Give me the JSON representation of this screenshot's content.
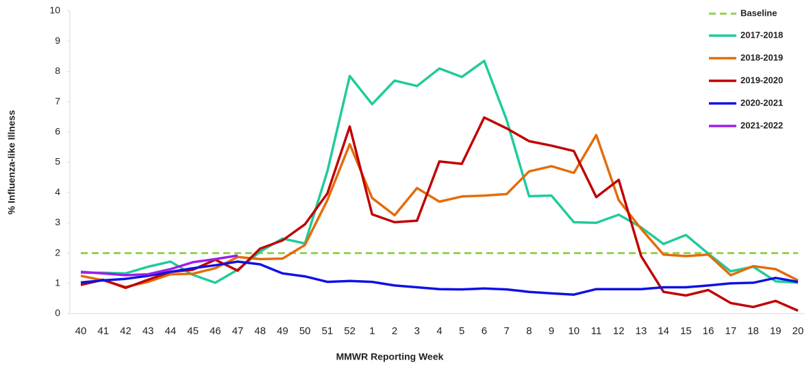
{
  "chart_data": {
    "type": "line",
    "y_label": "% Influenza-like Illness",
    "x_label": "MMWR Reporting Week",
    "categories": [
      "40",
      "41",
      "42",
      "43",
      "44",
      "45",
      "46",
      "47",
      "48",
      "49",
      "50",
      "51",
      "52",
      "1",
      "2",
      "3",
      "4",
      "5",
      "6",
      "7",
      "8",
      "9",
      "10",
      "11",
      "12",
      "13",
      "14",
      "15",
      "16",
      "17",
      "18",
      "19",
      "20"
    ],
    "ylim": [
      0,
      10
    ],
    "yticks": [
      0,
      1,
      2,
      3,
      4,
      5,
      6,
      7,
      8,
      9,
      10
    ],
    "baseline": {
      "name": "Baseline",
      "value": 2.0,
      "color": "#92d050"
    },
    "series": [
      {
        "name": "2017-2018",
        "color": "#1fcb9a",
        "values": [
          1.35,
          1.35,
          1.33,
          1.55,
          1.72,
          1.28,
          1.02,
          1.45,
          2.05,
          2.48,
          2.32,
          4.7,
          7.85,
          6.92,
          7.7,
          7.52,
          8.1,
          7.82,
          8.35,
          6.4,
          3.88,
          3.9,
          3.02,
          3.0,
          3.27,
          2.85,
          2.3,
          2.6,
          1.98,
          1.4,
          1.55,
          1.07,
          1.02
        ]
      },
      {
        "name": "2018-2019",
        "color": "#e46c0a",
        "values": [
          1.25,
          1.1,
          0.88,
          1.05,
          1.3,
          1.32,
          1.5,
          1.87,
          1.8,
          1.82,
          2.27,
          3.75,
          5.6,
          3.82,
          3.25,
          4.15,
          3.7,
          3.87,
          3.9,
          3.95,
          4.7,
          4.87,
          4.65,
          5.9,
          3.75,
          2.8,
          1.95,
          1.9,
          1.95,
          1.27,
          1.57,
          1.47,
          1.1
        ]
      },
      {
        "name": "2019-2020",
        "color": "#c00000",
        "values": [
          0.95,
          1.12,
          0.85,
          1.12,
          1.38,
          1.45,
          1.78,
          1.42,
          2.15,
          2.42,
          2.95,
          3.97,
          6.18,
          3.28,
          3.02,
          3.07,
          5.03,
          4.95,
          6.48,
          6.12,
          5.7,
          5.55,
          5.37,
          3.85,
          4.42,
          1.9,
          0.72,
          0.6,
          0.78,
          0.35,
          0.22,
          0.42,
          0.1
        ]
      },
      {
        "name": "2020-2021",
        "color": "#1010e6",
        "values": [
          1.03,
          1.1,
          1.15,
          1.25,
          1.38,
          1.5,
          1.6,
          1.72,
          1.63,
          1.33,
          1.23,
          1.05,
          1.08,
          1.05,
          0.93,
          0.87,
          0.81,
          0.8,
          0.83,
          0.8,
          0.72,
          0.67,
          0.63,
          0.81,
          0.81,
          0.81,
          0.87,
          0.87,
          0.93,
          1.0,
          1.02,
          1.18,
          1.05
        ]
      },
      {
        "name": "2021-2022",
        "color": "#9b1fe8",
        "values": [
          1.38,
          1.33,
          1.27,
          1.3,
          1.47,
          1.7,
          1.8,
          1.92,
          null,
          null,
          null,
          null,
          null,
          null,
          null,
          null,
          null,
          null,
          null,
          null,
          null,
          null,
          null,
          null,
          null,
          null,
          null,
          null,
          null,
          null,
          null,
          null,
          null
        ]
      }
    ]
  }
}
